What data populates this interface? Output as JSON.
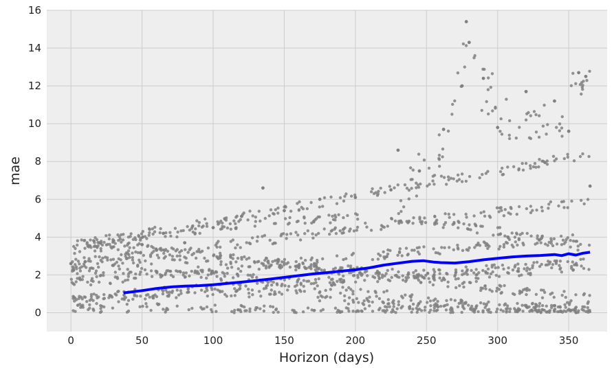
{
  "chart_data": {
    "type": "scatter",
    "title": "",
    "xlabel": "Horizon (days)",
    "ylabel": "mae",
    "xlim": [
      -17,
      377
    ],
    "ylim": [
      -1,
      16
    ],
    "x_ticks": [
      0,
      50,
      100,
      150,
      200,
      250,
      300,
      350
    ],
    "y_ticks": [
      0,
      2,
      4,
      6,
      8,
      10,
      12,
      14,
      16
    ],
    "grid": true,
    "background": "#eeeeee",
    "gridline_color": "#cccccc",
    "series": [
      {
        "kind": "scatter",
        "color": "#808080",
        "count": 1800,
        "x_range": [
          0,
          365
        ],
        "note_points": [
          [
            0,
            2.6
          ],
          [
            10,
            2.7
          ],
          [
            20,
            3.7
          ],
          [
            30,
            3.8
          ],
          [
            50,
            3.6
          ],
          [
            65,
            4.2
          ],
          [
            80,
            3.7
          ],
          [
            100,
            4.5
          ],
          [
            120,
            5.1
          ],
          [
            135,
            6.6
          ],
          [
            150,
            5.4
          ],
          [
            175,
            6.0
          ],
          [
            200,
            6.1
          ],
          [
            225,
            6.5
          ],
          [
            230,
            8.6
          ],
          [
            245,
            7.5
          ],
          [
            262,
            9.7
          ],
          [
            275,
            12.0
          ],
          [
            278,
            15.4
          ],
          [
            280,
            14.3
          ],
          [
            290,
            12.4
          ],
          [
            300,
            9.8
          ],
          [
            320,
            11.7
          ],
          [
            340,
            11.2
          ],
          [
            350,
            9.6
          ],
          [
            357,
            12.7
          ],
          [
            362,
            12.5
          ],
          [
            365,
            6.7
          ]
        ]
      },
      {
        "kind": "line",
        "color": "#0000ff",
        "x": [
          37,
          50,
          60,
          70,
          80,
          90,
          100,
          110,
          120,
          130,
          140,
          150,
          160,
          170,
          180,
          190,
          200,
          210,
          220,
          230,
          240,
          248,
          255,
          260,
          270,
          280,
          290,
          300,
          310,
          320,
          330,
          340,
          345,
          350,
          355,
          360,
          365
        ],
        "y": [
          1.05,
          1.17,
          1.28,
          1.36,
          1.41,
          1.43,
          1.48,
          1.55,
          1.62,
          1.7,
          1.78,
          1.87,
          1.96,
          2.05,
          2.12,
          2.2,
          2.27,
          2.38,
          2.52,
          2.62,
          2.72,
          2.75,
          2.68,
          2.65,
          2.63,
          2.7,
          2.8,
          2.88,
          2.95,
          3.0,
          3.03,
          3.08,
          3.02,
          3.12,
          3.05,
          3.15,
          3.2
        ]
      }
    ]
  }
}
